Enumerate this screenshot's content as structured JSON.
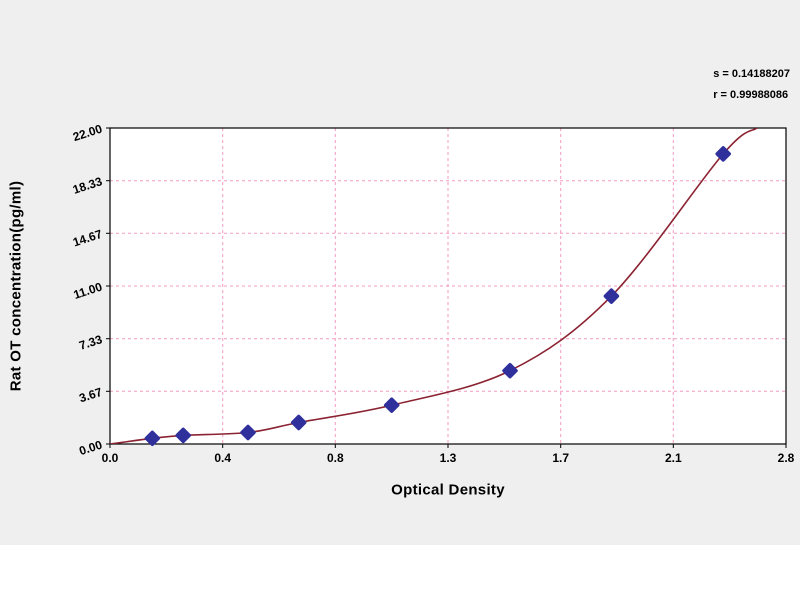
{
  "annotation": {
    "line1": "s = 0.14188207",
    "line2": "r = 0.99988086"
  },
  "chart_data": {
    "type": "scatter",
    "title": "",
    "xlabel": "Optical Density",
    "ylabel": "Rat OT concentration(pg/ml)",
    "xlim": [
      0,
      2.8
    ],
    "ylim": [
      0,
      22
    ],
    "grid": true,
    "x_tick_labels": [
      "0.0",
      "0.4",
      "0.8",
      "1.3",
      "1.7",
      "2.1",
      "2.8"
    ],
    "x_tick_values": [
      0,
      0.4,
      0.8,
      1.3,
      1.7,
      2.1,
      2.8
    ],
    "y_tick_labels": [
      "0.00",
      "3.67",
      "7.33",
      "11.00",
      "14.67",
      "18.33",
      "22.00"
    ],
    "y_tick_values": [
      0,
      3.67,
      7.33,
      11,
      14.67,
      18.33,
      22
    ],
    "points": [
      {
        "x": 0.15,
        "y": 0.4
      },
      {
        "x": 0.26,
        "y": 0.6
      },
      {
        "x": 0.49,
        "y": 0.8
      },
      {
        "x": 0.67,
        "y": 1.5
      },
      {
        "x": 1.05,
        "y": 2.7
      },
      {
        "x": 1.52,
        "y": 5.1
      },
      {
        "x": 1.88,
        "y": 10.3
      },
      {
        "x": 2.41,
        "y": 20.2
      }
    ],
    "fit_curve": {
      "shape": "exponential standard curve",
      "start": {
        "x": 0.0,
        "y": 0.0
      },
      "end": {
        "x": 2.62,
        "y": 22.0
      }
    },
    "colors": {
      "curve": "#8b2332",
      "points": "#30309c",
      "grid": "#f49ac1",
      "plot_bg": "#ffffff",
      "panel_bg": "#efefef",
      "axis": "#000000"
    },
    "legend": "none"
  }
}
